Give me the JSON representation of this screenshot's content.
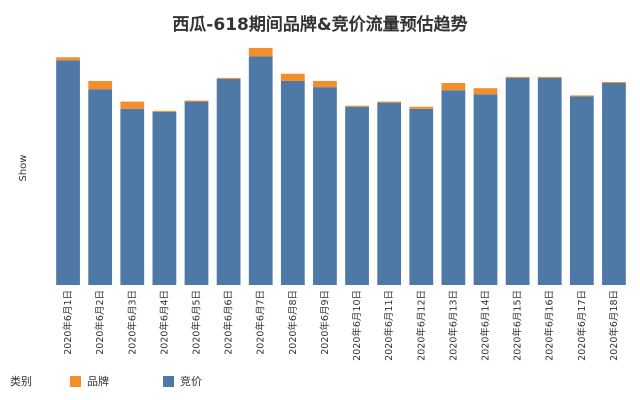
{
  "chart_data": {
    "type": "bar",
    "stacked": true,
    "title": "西瓜-618期间品牌&竞价流量预估趋势",
    "ylabel": "Show",
    "xlabel": "",
    "categories": [
      "2020年6月1日",
      "2020年6月2日",
      "2020年6月3日",
      "2020年6月4日",
      "2020年6月5日",
      "2020年6月6日",
      "2020年6月7日",
      "2020年6月8日",
      "2020年6月9日",
      "2020年6月10日",
      "2020年6月11日",
      "2020年6月12日",
      "2020年6月13日",
      "2020年6月14日",
      "2020年6月15日",
      "2020年6月16日",
      "2020年6月17日",
      "2020年6月18日"
    ],
    "series": [
      {
        "name": "竞价",
        "color": "#4e79a7",
        "values": [
          218,
          190,
          171,
          168,
          178,
          200,
          222,
          198,
          192,
          173,
          177,
          171,
          189,
          185,
          201,
          201,
          183,
          196
        ]
      },
      {
        "name": "品牌",
        "color": "#f28e2b",
        "values": [
          3,
          8,
          7,
          1,
          1,
          1,
          8,
          7,
          6,
          1,
          1,
          2,
          7,
          6,
          1,
          1,
          1,
          1
        ]
      }
    ],
    "ylim": [
      0,
      230
    ],
    "grid": false,
    "legend_title": "类别",
    "legend_position": "bottom-left"
  }
}
